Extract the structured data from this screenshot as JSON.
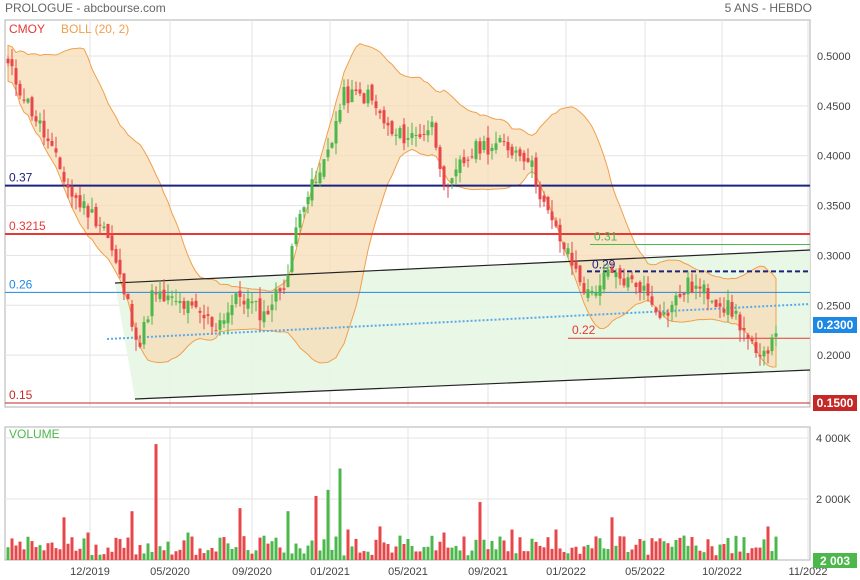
{
  "header": {
    "brand": "PROLOGUE - abcbourse.com",
    "period": "5 ANS - HEBDO"
  },
  "legend": {
    "cmoy": "CMOY",
    "boll": "BOLL (20, 2)",
    "volume": "VOLUME"
  },
  "colors": {
    "up": "#4cb84c",
    "down": "#e8474a",
    "boll_fill": "#f7dcb5",
    "boll_line": "#f0a04a",
    "channel_fill": "#e7f6e3",
    "blue_level": "#1a237e",
    "red_level": "#e53935",
    "mid_level": "#1e88e5",
    "dotted_trend": "#5aa9e6",
    "last_price_bg": "#1e88e5",
    "low_bg": "#c62828"
  },
  "chart_data": [
    {
      "type": "candlestick",
      "title": "PROLOGUE",
      "x_ticks": [
        "12/2019",
        "05/2020",
        "09/2020",
        "01/2021",
        "05/2021",
        "09/2021",
        "01/2022",
        "05/2022",
        "10/2022",
        "11/2022"
      ],
      "y_ticks": [
        "0.5000",
        "0.4500",
        "0.4000",
        "0.3500",
        "0.3000",
        "0.2500",
        "0.2000"
      ],
      "ylim": [
        0.145,
        0.52
      ],
      "levels": [
        {
          "label": "0.37",
          "value": 0.37,
          "color": "#1a237e"
        },
        {
          "label": "0.3215",
          "value": 0.3215,
          "color": "#e53935"
        },
        {
          "label": "0.26",
          "value": 0.263,
          "color": "#1e88e5"
        },
        {
          "label": "0.15",
          "value": 0.152,
          "color": "#c62828"
        }
      ],
      "annotations": [
        {
          "label": "0.31",
          "value": 0.312
        },
        {
          "label": "0.29",
          "value": 0.288
        },
        {
          "label": "0.22",
          "value": 0.22
        }
      ],
      "last_price": "0.2300",
      "low_tag": "0.1500",
      "anchors": [
        [
          0,
          0.49
        ],
        [
          8,
          0.43
        ],
        [
          16,
          0.36
        ],
        [
          24,
          0.33
        ],
        [
          30,
          0.25
        ],
        [
          33,
          0.21
        ],
        [
          36,
          0.26
        ],
        [
          44,
          0.25
        ],
        [
          52,
          0.23
        ],
        [
          58,
          0.26
        ],
        [
          64,
          0.24
        ],
        [
          70,
          0.28
        ],
        [
          73,
          0.35
        ],
        [
          78,
          0.38
        ],
        [
          84,
          0.46
        ],
        [
          90,
          0.46
        ],
        [
          96,
          0.42
        ],
        [
          102,
          0.42
        ],
        [
          106,
          0.43
        ],
        [
          110,
          0.36
        ],
        [
          113,
          0.39
        ],
        [
          118,
          0.41
        ],
        [
          124,
          0.41
        ],
        [
          130,
          0.4
        ],
        [
          135,
          0.34
        ],
        [
          140,
          0.3
        ],
        [
          145,
          0.26
        ],
        [
          150,
          0.28
        ],
        [
          158,
          0.27
        ],
        [
          164,
          0.24
        ],
        [
          170,
          0.27
        ],
        [
          176,
          0.26
        ],
        [
          182,
          0.24
        ],
        [
          188,
          0.19
        ],
        [
          192,
          0.23
        ]
      ]
    },
    {
      "type": "bar",
      "title": "VOLUME",
      "y_ticks": [
        "4 000K",
        "2 000K"
      ],
      "ylim": [
        0,
        4400
      ],
      "last_volume": "2 003",
      "peaks": [
        [
          6,
          620
        ],
        [
          14,
          1400
        ],
        [
          20,
          900
        ],
        [
          31,
          1600
        ],
        [
          37,
          3800
        ],
        [
          45,
          900
        ],
        [
          58,
          1700
        ],
        [
          70,
          1600
        ],
        [
          77,
          2100
        ],
        [
          80,
          2300
        ],
        [
          83,
          3000
        ],
        [
          85,
          1000
        ],
        [
          93,
          1100
        ],
        [
          109,
          900
        ],
        [
          118,
          1900
        ],
        [
          126,
          1000
        ],
        [
          137,
          1000
        ],
        [
          151,
          1400
        ],
        [
          169,
          800
        ],
        [
          190,
          1100
        ]
      ]
    }
  ]
}
